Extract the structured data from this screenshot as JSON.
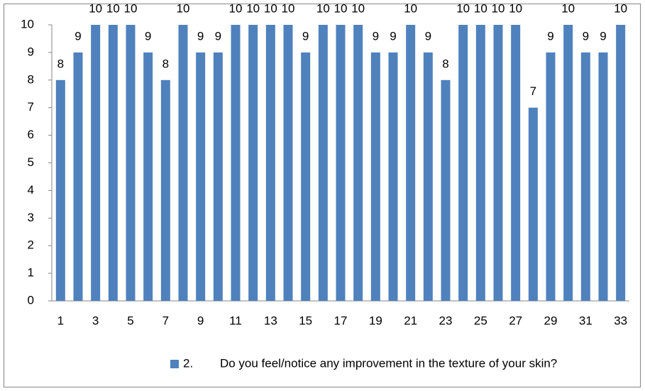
{
  "chart_data": {
    "type": "bar",
    "categories": [
      "1",
      null,
      "3",
      null,
      "5",
      null,
      "7",
      null,
      "9",
      null,
      "11",
      null,
      "13",
      null,
      "15",
      null,
      "17",
      null,
      "19",
      null,
      "21",
      null,
      "23",
      null,
      "25",
      null,
      "27",
      null,
      "29",
      null,
      "31",
      null,
      "33"
    ],
    "series": [
      {
        "name": "2.        Do you feel/notice any improvement in the texture of your skin?",
        "color": "#4f81bd",
        "values": [
          8,
          9,
          10,
          10,
          10,
          9,
          8,
          10,
          9,
          9,
          10,
          10,
          10,
          10,
          9,
          10,
          10,
          10,
          9,
          9,
          10,
          9,
          8,
          10,
          10,
          10,
          10,
          7,
          9,
          10,
          9,
          9,
          10
        ]
      }
    ],
    "ylim": [
      0,
      10
    ],
    "yticks": [
      0,
      1,
      2,
      3,
      4,
      5,
      6,
      7,
      8,
      9,
      10
    ],
    "grid": false,
    "legend": "bottom",
    "data_labels": true
  }
}
